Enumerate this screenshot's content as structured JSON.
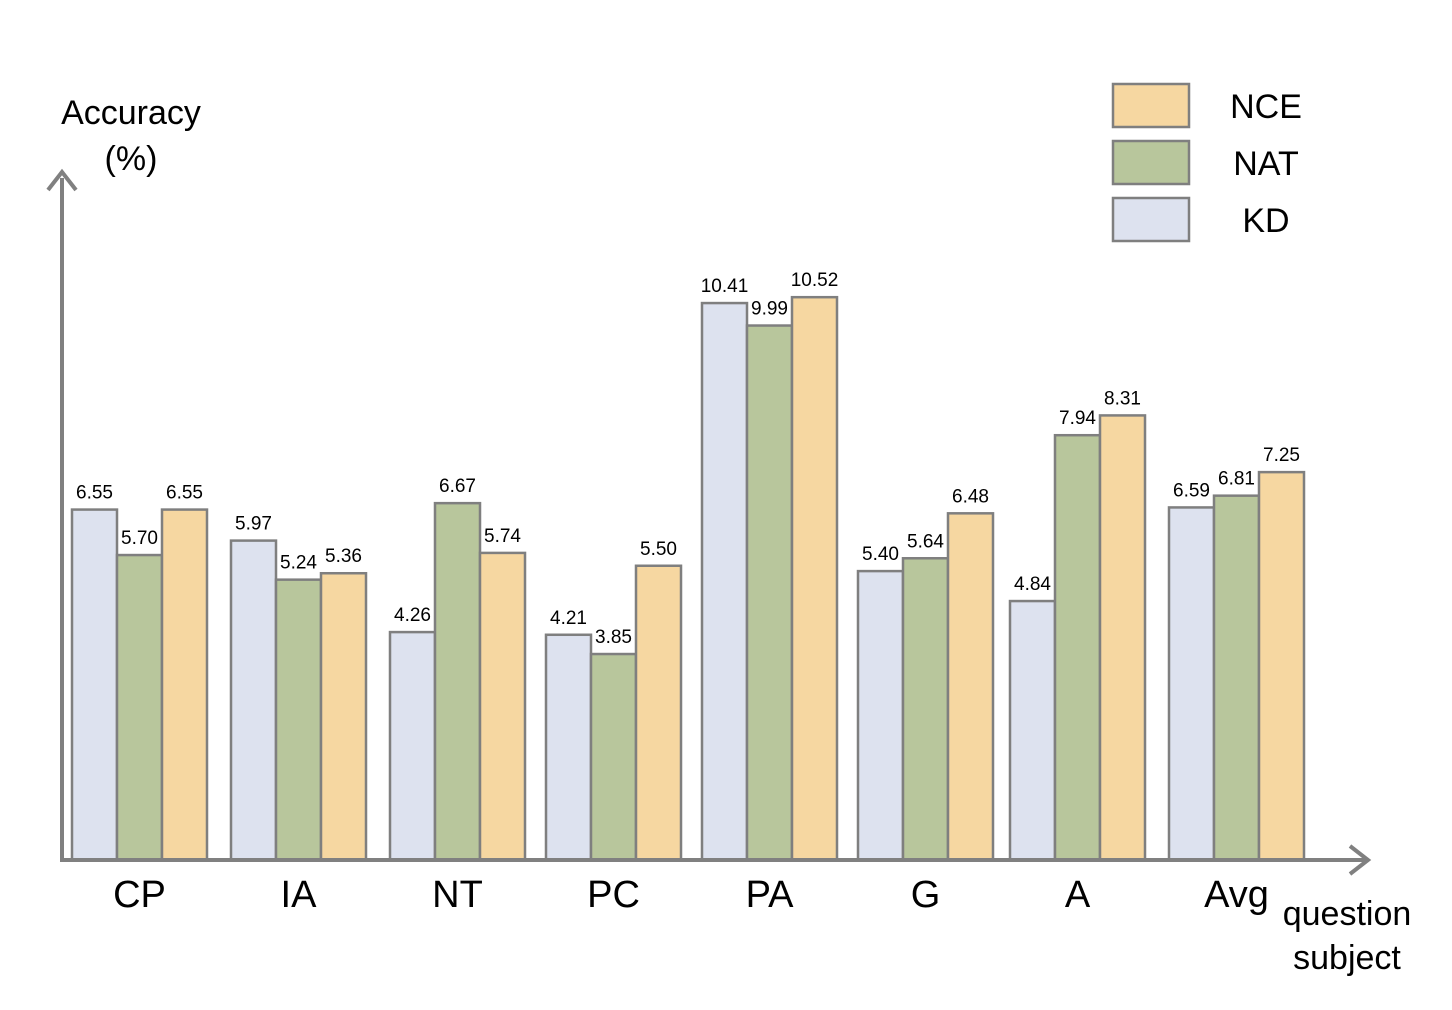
{
  "chart_data": {
    "type": "bar",
    "ylabel_line1": "Accuracy",
    "ylabel_line2": "(%)",
    "xlabel_line1": "question",
    "xlabel_line2": "subject",
    "categories": [
      "CP",
      "IA",
      "NT",
      "PC",
      "PA",
      "G",
      "A",
      "Avg"
    ],
    "series": [
      {
        "name": "KD",
        "color": "#dde2ef",
        "values": [
          6.55,
          5.97,
          4.26,
          4.21,
          10.41,
          5.4,
          4.84,
          6.59
        ]
      },
      {
        "name": "NAT",
        "color": "#b8c69c",
        "values": [
          5.7,
          5.24,
          6.67,
          3.85,
          9.99,
          5.64,
          7.94,
          6.81
        ]
      },
      {
        "name": "NCE",
        "color": "#f6d7a1",
        "values": [
          6.55,
          5.36,
          5.74,
          5.5,
          10.52,
          6.48,
          8.31,
          7.25
        ]
      }
    ],
    "value_labels": [
      [
        "6.55",
        "5.97",
        "4.26",
        "4.21",
        "10.41",
        "5.40",
        "4.84",
        "6.59"
      ],
      [
        "5.70",
        "5.24",
        "6.67",
        "3.85",
        "9.99",
        "5.64",
        "7.94",
        "6.81"
      ],
      [
        "6.55",
        "5.36",
        "5.74",
        "5.50",
        "10.52",
        "6.48",
        "8.31",
        "7.25"
      ]
    ],
    "legend_order": [
      "NCE",
      "NAT",
      "KD"
    ],
    "legend_position": "top-right",
    "ylim": [
      0,
      11
    ],
    "grid": false,
    "axis_color": "#808080",
    "bar_edge_color": "#7f7f7f"
  }
}
